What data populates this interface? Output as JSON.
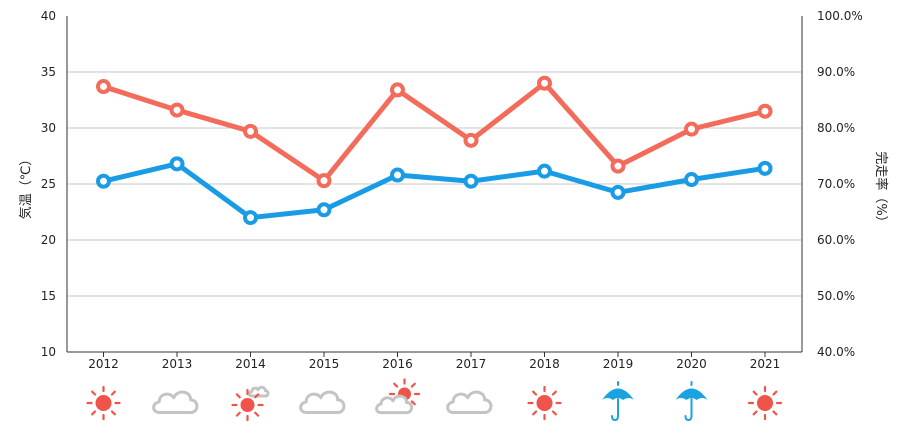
{
  "chart_data": {
    "type": "line",
    "x": [
      "2012",
      "2013",
      "2014",
      "2015",
      "2016",
      "2017",
      "2018",
      "2019",
      "2020",
      "2021"
    ],
    "ylabel_left": "気温（℃）",
    "ylabel_right": "完走率（%）",
    "ylim_left": [
      10,
      40
    ],
    "ylim_right": [
      40,
      100
    ],
    "yticks_left": [
      "40",
      "35",
      "30",
      "25",
      "20",
      "15",
      "10"
    ],
    "yticks_right": [
      "100.0%",
      "90.0%",
      "80.0%",
      "70.0%",
      "60.0%",
      "50.0%",
      "40.0%"
    ],
    "grid": true,
    "series": [
      {
        "axis": "left",
        "color": "#f26b5b",
        "values": [
          33.7,
          31.6,
          29.7,
          25.3,
          33.4,
          28.9,
          34.0,
          26.6,
          29.9,
          31.5
        ]
      },
      {
        "axis": "right",
        "color": "#1a9be6",
        "values": [
          70.5,
          73.6,
          64.0,
          65.4,
          71.6,
          70.5,
          72.3,
          68.5,
          70.8,
          72.8
        ]
      }
    ],
    "weather_icons": [
      "sun-icon",
      "cloud-icon",
      "sun-cloud-icon",
      "cloud-icon",
      "cloud-sun-icon",
      "cloud-icon",
      "sun-icon",
      "umbrella-icon",
      "umbrella-icon",
      "sun-icon"
    ],
    "icon_colors": {
      "sun": "#f0534a",
      "cloud": "#c4c4c4",
      "umbrella": "#1aa3e0"
    }
  }
}
